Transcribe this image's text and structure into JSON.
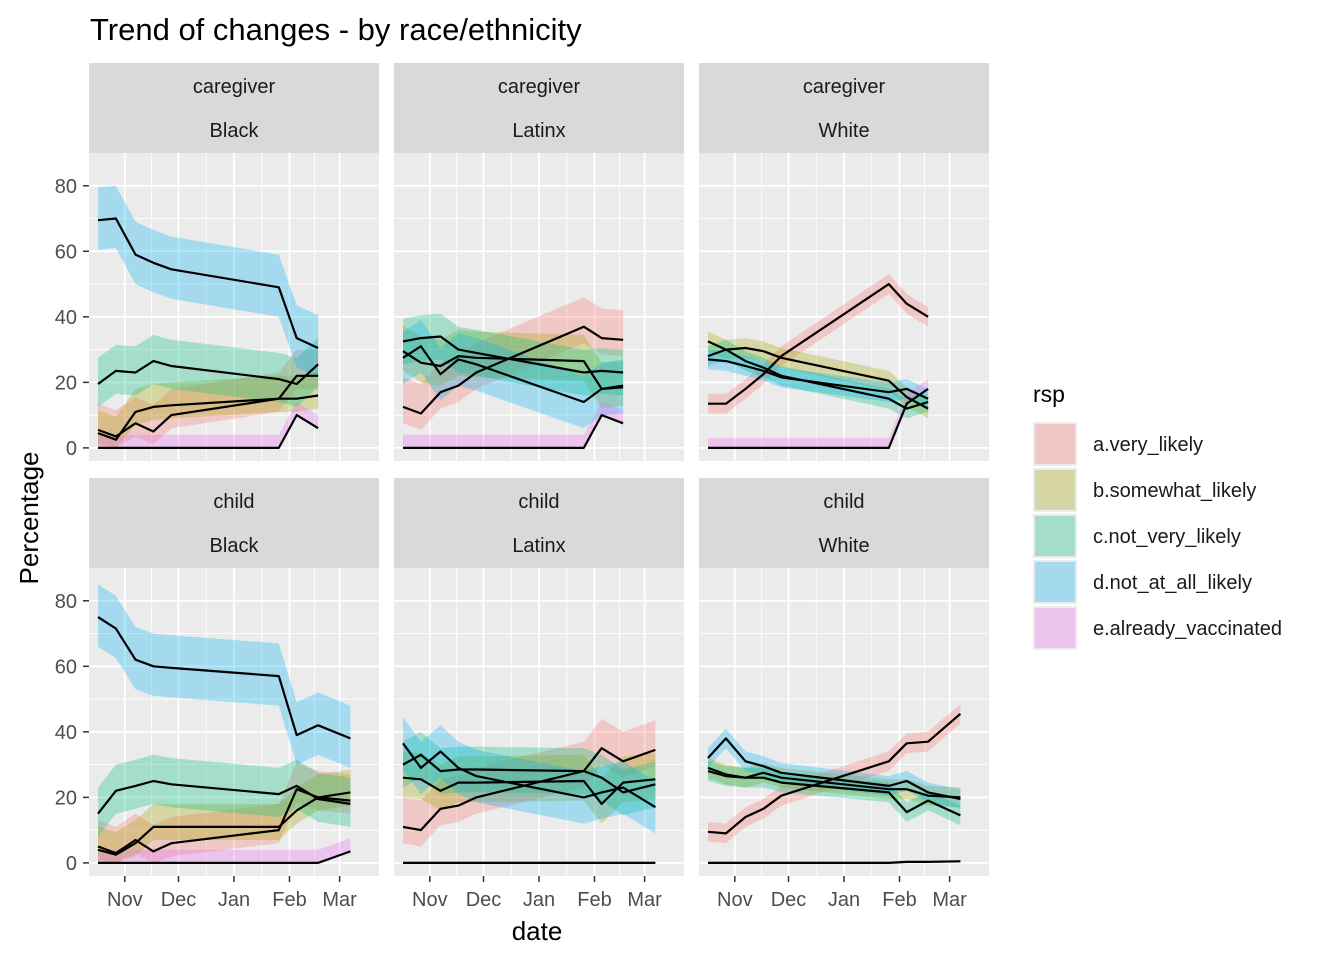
{
  "chart_data": {
    "type": "line",
    "title": "Trend of changes - by race/ethnicity",
    "xlabel": "date",
    "ylabel": "Percentage",
    "ylim": [
      -4,
      90
    ],
    "y_ticks": [
      0,
      20,
      40,
      60,
      80
    ],
    "x_ticks": [
      {
        "label": "Nov",
        "date": "2020-11-01"
      },
      {
        "label": "Dec",
        "date": "2020-12-01"
      },
      {
        "label": "Jan",
        "date": "2021-01-01"
      },
      {
        "label": "Feb",
        "date": "2021-02-01"
      },
      {
        "label": "Mar",
        "date": "2021-03-01"
      }
    ],
    "xlim": [
      "2020-10-12",
      "2021-03-23"
    ],
    "grid": true,
    "legend": {
      "title": "rsp",
      "placement": "right",
      "entries": [
        {
          "name": "a.very_likely",
          "color": "#F8766D"
        },
        {
          "name": "b.somewhat_likely",
          "color": "#A3A500"
        },
        {
          "name": "c.not_very_likely",
          "color": "#00BF7D"
        },
        {
          "name": "d.not_at_all_likely",
          "color": "#00B0F6"
        },
        {
          "name": "e.already_vaccinated",
          "color": "#E76BF3"
        }
      ]
    },
    "facet_rows": [
      "caregiver",
      "child"
    ],
    "facet_cols": [
      "Black",
      "Latinx",
      "White"
    ],
    "panels": [
      {
        "row": "caregiver",
        "col": "Black",
        "dates": [
          "2020-10-17",
          "2020-10-27",
          "2020-11-07",
          "2020-11-17",
          "2020-11-27",
          "2021-01-26",
          "2021-02-05",
          "2021-02-17"
        ],
        "series": [
          {
            "name": "a.very_likely",
            "values": [
              5.5,
              3.5,
              7.5,
              5,
              10,
              15,
              22,
              22
            ],
            "band": [
              4,
              8
            ]
          },
          {
            "name": "b.somewhat_likely",
            "values": [
              4.5,
              2.5,
              11,
              12.5,
              13,
              15,
              15,
              16
            ],
            "band": [
              4,
              7
            ]
          },
          {
            "name": "c.not_very_likely",
            "values": [
              19.5,
              23.5,
              23,
              26.5,
              25,
              21,
              19.5,
              25.5
            ],
            "band": [
              7,
              8
            ]
          },
          {
            "name": "d.not_at_all_likely",
            "values": [
              69.5,
              70,
              59,
              56.5,
              54.5,
              49,
              33.5,
              30.5
            ],
            "band": [
              9,
              10
            ]
          },
          {
            "name": "e.already_vaccinated",
            "values": [
              0,
              0,
              0,
              0,
              0,
              0,
              10,
              6
            ],
            "band": [
              0,
              4
            ]
          }
        ]
      },
      {
        "row": "caregiver",
        "col": "Latinx",
        "dates": [
          "2020-10-17",
          "2020-10-27",
          "2020-11-07",
          "2020-11-17",
          "2020-11-27",
          "2021-01-26",
          "2021-02-05",
          "2021-02-17"
        ],
        "series": [
          {
            "name": "a.very_likely",
            "values": [
              12.5,
              10.5,
              17,
              19,
              23,
              37,
              33.5,
              33
            ],
            "band": [
              5,
              9
            ]
          },
          {
            "name": "b.somewhat_likely",
            "values": [
              29.5,
              26,
              25,
              28,
              27.5,
              26.5,
              18,
              19
            ],
            "band": [
              6,
              8
            ]
          },
          {
            "name": "c.not_very_likely",
            "values": [
              32.5,
              33.5,
              34,
              30,
              29,
              23,
              23.5,
              23
            ],
            "band": [
              7,
              7
            ]
          },
          {
            "name": "d.not_at_all_likely",
            "values": [
              27.5,
              31,
              22.5,
              27,
              25.5,
              14,
              18,
              18.5
            ],
            "band": [
              8,
              8
            ]
          },
          {
            "name": "e.already_vaccinated",
            "values": [
              0,
              0,
              0,
              0,
              0,
              0,
              10,
              7.5
            ],
            "band": [
              0,
              4
            ]
          }
        ]
      },
      {
        "row": "caregiver",
        "col": "White",
        "dates": [
          "2020-10-17",
          "2020-10-27",
          "2020-11-07",
          "2020-11-17",
          "2020-11-27",
          "2021-01-26",
          "2021-02-05",
          "2021-02-17"
        ],
        "series": [
          {
            "name": "a.very_likely",
            "values": [
              13.5,
              13.5,
              18,
              22.5,
              28,
              50,
              44,
              40
            ],
            "band": [
              3,
              3
            ]
          },
          {
            "name": "b.somewhat_likely",
            "values": [
              32.5,
              30,
              30.5,
              29.5,
              27.5,
              20.5,
              15.5,
              12
            ],
            "band": [
              3,
              3
            ]
          },
          {
            "name": "c.not_very_likely",
            "values": [
              28,
              30,
              26.5,
              24.5,
              22,
              15,
              12,
              14
            ],
            "band": [
              3,
              3
            ]
          },
          {
            "name": "d.not_at_all_likely",
            "values": [
              27,
              26.5,
              25,
              23.5,
              21.5,
              17,
              18,
              15
            ],
            "band": [
              3,
              3
            ]
          },
          {
            "name": "e.already_vaccinated",
            "values": [
              0,
              0,
              0,
              0,
              0,
              0,
              13.5,
              18
            ],
            "band": [
              0,
              3
            ]
          }
        ]
      },
      {
        "row": "child",
        "col": "Black",
        "dates": [
          "2020-10-17",
          "2020-10-27",
          "2020-11-07",
          "2020-11-17",
          "2020-11-27",
          "2021-01-26",
          "2021-02-05",
          "2021-02-17",
          "2021-03-07"
        ],
        "series": [
          {
            "name": "a.very_likely",
            "values": [
              5,
              3,
              7,
              3.5,
              6,
              10,
              22.5,
              20,
              19
            ],
            "band": [
              4,
              8
            ]
          },
          {
            "name": "b.somewhat_likely",
            "values": [
              4,
              2.5,
              6,
              11,
              11,
              11,
              16,
              20,
              21.5
            ],
            "band": [
              4,
              7
            ]
          },
          {
            "name": "c.not_very_likely",
            "values": [
              15,
              22,
              23.5,
              25,
              24,
              21,
              23.5,
              19.5,
              18
            ],
            "band": [
              7,
              8
            ]
          },
          {
            "name": "d.not_at_all_likely",
            "values": [
              75,
              71.5,
              62,
              60,
              59.5,
              57,
              39,
              42,
              38
            ],
            "band": [
              9,
              10
            ]
          },
          {
            "name": "e.already_vaccinated",
            "values": [
              0,
              0,
              0,
              0,
              0,
              0,
              0,
              0,
              3.5
            ],
            "band": [
              0,
              4
            ]
          }
        ]
      },
      {
        "row": "child",
        "col": "Latinx",
        "dates": [
          "2020-10-17",
          "2020-10-27",
          "2020-11-07",
          "2020-11-17",
          "2020-11-27",
          "2021-01-26",
          "2021-02-05",
          "2021-02-17",
          "2021-03-07"
        ],
        "series": [
          {
            "name": "a.very_likely",
            "values": [
              11,
              10,
              16.5,
              17.5,
              20,
              28,
              35,
              31,
              34.5
            ],
            "band": [
              5,
              9
            ]
          },
          {
            "name": "b.somewhat_likely",
            "values": [
              26,
              25.5,
              22,
              24.5,
              24.5,
              25,
              18,
              24.5,
              25.5
            ],
            "band": [
              6,
              8
            ]
          },
          {
            "name": "c.not_very_likely",
            "values": [
              30,
              33,
              28,
              28.5,
              28.5,
              28,
              26,
              21.5,
              24
            ],
            "band": [
              7,
              7
            ]
          },
          {
            "name": "d.not_at_all_likely",
            "values": [
              36.5,
              29,
              34,
              29,
              26.5,
              20,
              21.5,
              23,
              17
            ],
            "band": [
              8,
              8
            ]
          },
          {
            "name": "e.already_vaccinated",
            "values": [
              0,
              0,
              0,
              0,
              0,
              0,
              0,
              0,
              0
            ],
            "band": [
              0,
              0.5
            ]
          }
        ]
      },
      {
        "row": "child",
        "col": "White",
        "dates": [
          "2020-10-17",
          "2020-10-27",
          "2020-11-07",
          "2020-11-17",
          "2020-11-27",
          "2021-01-26",
          "2021-02-05",
          "2021-02-17",
          "2021-03-07"
        ],
        "series": [
          {
            "name": "a.very_likely",
            "values": [
              9.5,
              9,
              14,
              16.5,
              20.5,
              31,
              36.5,
              37,
              45.5
            ],
            "band": [
              3,
              3
            ]
          },
          {
            "name": "b.somewhat_likely",
            "values": [
              29,
              27,
              26,
              27.5,
              26,
              22.5,
              22.5,
              20.5,
              20
            ],
            "band": [
              3,
              3
            ]
          },
          {
            "name": "c.not_very_likely",
            "values": [
              28,
              26.5,
              26,
              26,
              24.5,
              21.5,
              15.5,
              19,
              14.5
            ],
            "band": [
              3,
              3
            ]
          },
          {
            "name": "d.not_at_all_likely",
            "values": [
              32,
              38,
              31,
              29.5,
              27.5,
              23.5,
              25,
              21.5,
              19.5
            ],
            "band": [
              3,
              3
            ]
          },
          {
            "name": "e.already_vaccinated",
            "values": [
              0,
              0,
              0,
              0,
              0,
              0,
              0.3,
              0.3,
              0.5
            ],
            "band": [
              0,
              0.5
            ]
          }
        ]
      }
    ]
  }
}
